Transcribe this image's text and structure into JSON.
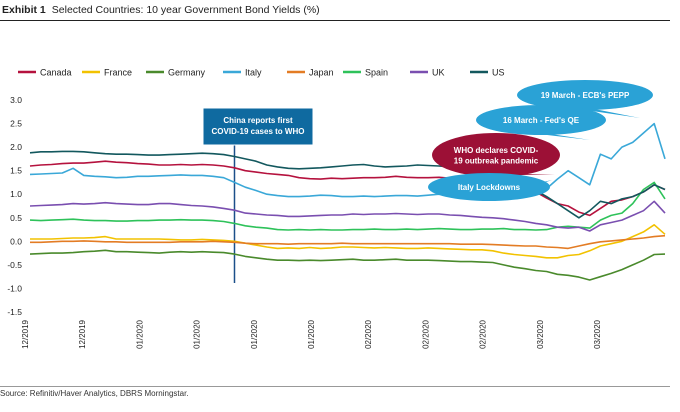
{
  "header": {
    "label": "Exhibit 1",
    "title": "Selected Countries: 10 year Government Bond Yields (%)"
  },
  "source": "Source: Refinitiv/Haver Analytics, DBRS Morningstar.",
  "chart_data": {
    "type": "line",
    "title": "Selected Countries: 10 year Government Bond Yields (%)",
    "xlabel": "",
    "ylabel": "",
    "ylim": [
      -1.5,
      3.0
    ],
    "yticks": [
      "3.0",
      "2.5",
      "2.0",
      "1.5",
      "1.0",
      "0.5",
      "0.0",
      "-0.5",
      "-1.0",
      "-1.5"
    ],
    "ytick_values": [
      3.0,
      2.5,
      2.0,
      1.5,
      1.0,
      0.5,
      0.0,
      -0.5,
      -1.0,
      -1.5
    ],
    "xticks": [
      "12/2019",
      "12/2019",
      "01/2020",
      "01/2020",
      "01/2020",
      "01/2020",
      "02/2020",
      "02/2020",
      "02/2020",
      "03/2020",
      "03/2020"
    ],
    "x_points": 60,
    "series": [
      {
        "name": "Canada",
        "color": "#b5123e",
        "values": [
          1.6,
          1.62,
          1.63,
          1.65,
          1.66,
          1.66,
          1.68,
          1.7,
          1.68,
          1.67,
          1.65,
          1.64,
          1.62,
          1.62,
          1.63,
          1.62,
          1.63,
          1.62,
          1.6,
          1.56,
          1.5,
          1.47,
          1.44,
          1.42,
          1.4,
          1.35,
          1.33,
          1.32,
          1.34,
          1.33,
          1.34,
          1.35,
          1.35,
          1.36,
          1.38,
          1.36,
          1.35,
          1.35,
          1.36,
          1.34,
          1.33,
          1.33,
          1.32,
          1.32,
          1.3,
          1.25,
          1.18,
          1.05,
          0.92,
          0.8,
          0.75,
          0.62,
          0.55,
          0.7,
          0.85,
          0.88,
          0.95,
          1.05,
          1.2,
          1.1
        ]
      },
      {
        "name": "France",
        "color": "#f2c200",
        "values": [
          0.05,
          0.05,
          0.05,
          0.06,
          0.07,
          0.07,
          0.08,
          0.1,
          0.05,
          0.05,
          0.05,
          0.05,
          0.05,
          0.04,
          0.03,
          0.03,
          0.04,
          0.03,
          0.02,
          0.0,
          -0.04,
          -0.08,
          -0.12,
          -0.15,
          -0.14,
          -0.15,
          -0.13,
          -0.15,
          -0.14,
          -0.12,
          -0.12,
          -0.13,
          -0.14,
          -0.13,
          -0.14,
          -0.15,
          -0.15,
          -0.14,
          -0.15,
          -0.16,
          -0.17,
          -0.18,
          -0.18,
          -0.2,
          -0.25,
          -0.28,
          -0.3,
          -0.32,
          -0.35,
          -0.35,
          -0.3,
          -0.28,
          -0.2,
          -0.1,
          -0.05,
          0.0,
          0.1,
          0.2,
          0.35,
          0.15
        ]
      },
      {
        "name": "Germany",
        "color": "#4a8a2c",
        "values": [
          -0.27,
          -0.26,
          -0.25,
          -0.25,
          -0.24,
          -0.22,
          -0.21,
          -0.19,
          -0.22,
          -0.22,
          -0.23,
          -0.24,
          -0.25,
          -0.23,
          -0.22,
          -0.23,
          -0.22,
          -0.23,
          -0.24,
          -0.27,
          -0.32,
          -0.35,
          -0.38,
          -0.4,
          -0.4,
          -0.41,
          -0.4,
          -0.41,
          -0.4,
          -0.39,
          -0.38,
          -0.4,
          -0.4,
          -0.39,
          -0.38,
          -0.4,
          -0.4,
          -0.4,
          -0.41,
          -0.42,
          -0.43,
          -0.43,
          -0.44,
          -0.45,
          -0.5,
          -0.55,
          -0.58,
          -0.62,
          -0.64,
          -0.7,
          -0.72,
          -0.76,
          -0.82,
          -0.75,
          -0.68,
          -0.6,
          -0.5,
          -0.4,
          -0.28,
          -0.27
        ]
      },
      {
        "name": "Italy",
        "color": "#3aa8d8",
        "values": [
          1.42,
          1.43,
          1.44,
          1.45,
          1.55,
          1.4,
          1.38,
          1.37,
          1.35,
          1.36,
          1.38,
          1.38,
          1.39,
          1.4,
          1.41,
          1.4,
          1.4,
          1.38,
          1.35,
          1.25,
          1.15,
          1.08,
          1.0,
          0.97,
          0.95,
          0.95,
          0.96,
          0.98,
          0.97,
          0.95,
          0.95,
          0.96,
          0.95,
          0.96,
          0.97,
          0.97,
          0.96,
          0.98,
          1.0,
          0.98,
          0.95,
          0.93,
          0.95,
          1.0,
          1.05,
          1.05,
          1.1,
          1.2,
          1.12,
          1.32,
          1.5,
          1.35,
          1.2,
          1.85,
          1.75,
          2.0,
          2.1,
          2.3,
          2.5,
          1.75
        ]
      },
      {
        "name": "Japan",
        "color": "#e37c24",
        "values": [
          -0.02,
          -0.02,
          -0.01,
          0.0,
          0.0,
          0.01,
          0.0,
          -0.01,
          -0.01,
          -0.02,
          -0.02,
          -0.02,
          -0.02,
          -0.02,
          -0.01,
          -0.01,
          -0.01,
          0.0,
          -0.01,
          -0.02,
          -0.04,
          -0.05,
          -0.05,
          -0.05,
          -0.06,
          -0.05,
          -0.05,
          -0.05,
          -0.05,
          -0.04,
          -0.05,
          -0.05,
          -0.05,
          -0.05,
          -0.05,
          -0.05,
          -0.05,
          -0.05,
          -0.05,
          -0.05,
          -0.06,
          -0.06,
          -0.06,
          -0.07,
          -0.08,
          -0.09,
          -0.1,
          -0.1,
          -0.12,
          -0.13,
          -0.15,
          -0.1,
          -0.05,
          -0.01,
          0.01,
          0.03,
          0.05,
          0.07,
          0.1,
          0.12
        ]
      },
      {
        "name": "Spain",
        "color": "#2ec25a",
        "values": [
          0.45,
          0.44,
          0.45,
          0.46,
          0.47,
          0.45,
          0.44,
          0.44,
          0.43,
          0.43,
          0.44,
          0.44,
          0.45,
          0.45,
          0.46,
          0.45,
          0.45,
          0.44,
          0.42,
          0.38,
          0.33,
          0.3,
          0.28,
          0.25,
          0.24,
          0.25,
          0.24,
          0.25,
          0.24,
          0.24,
          0.25,
          0.25,
          0.26,
          0.25,
          0.25,
          0.26,
          0.25,
          0.26,
          0.27,
          0.26,
          0.25,
          0.25,
          0.26,
          0.26,
          0.27,
          0.25,
          0.25,
          0.24,
          0.25,
          0.3,
          0.32,
          0.3,
          0.28,
          0.45,
          0.55,
          0.6,
          0.8,
          1.1,
          1.25,
          0.9
        ]
      },
      {
        "name": "UK",
        "color": "#7a4fb0",
        "values": [
          0.75,
          0.76,
          0.77,
          0.78,
          0.8,
          0.79,
          0.8,
          0.82,
          0.8,
          0.79,
          0.78,
          0.78,
          0.8,
          0.8,
          0.78,
          0.76,
          0.75,
          0.73,
          0.7,
          0.66,
          0.6,
          0.58,
          0.56,
          0.55,
          0.53,
          0.53,
          0.54,
          0.55,
          0.56,
          0.56,
          0.58,
          0.57,
          0.58,
          0.58,
          0.59,
          0.58,
          0.57,
          0.58,
          0.58,
          0.56,
          0.55,
          0.53,
          0.51,
          0.5,
          0.48,
          0.45,
          0.42,
          0.38,
          0.35,
          0.3,
          0.28,
          0.3,
          0.22,
          0.35,
          0.4,
          0.45,
          0.55,
          0.65,
          0.85,
          0.6
        ]
      },
      {
        "name": "US",
        "color": "#13585e",
        "values": [
          1.88,
          1.9,
          1.9,
          1.91,
          1.91,
          1.9,
          1.88,
          1.86,
          1.85,
          1.85,
          1.84,
          1.83,
          1.83,
          1.84,
          1.85,
          1.86,
          1.87,
          1.86,
          1.84,
          1.8,
          1.75,
          1.7,
          1.62,
          1.58,
          1.55,
          1.54,
          1.55,
          1.56,
          1.58,
          1.6,
          1.62,
          1.63,
          1.6,
          1.58,
          1.59,
          1.6,
          1.62,
          1.61,
          1.6,
          1.58,
          1.57,
          1.56,
          1.55,
          1.55,
          1.5,
          1.38,
          1.22,
          1.08,
          0.95,
          0.8,
          0.65,
          0.5,
          0.65,
          0.85,
          0.8,
          0.9,
          0.95,
          1.05,
          1.2,
          1.1
        ]
      }
    ],
    "annotations": [
      {
        "id": "china",
        "lines": [
          "China reports first",
          "COVID-19 cases to WHO"
        ],
        "color": "#0f6aa0"
      },
      {
        "id": "ecb",
        "lines": [
          "19 March - ECB's PEPP"
        ],
        "color": "#2aa2d6"
      },
      {
        "id": "fed",
        "lines": [
          "16 March - Fed's QE"
        ],
        "color": "#2aa2d6"
      },
      {
        "id": "who",
        "lines": [
          "WHO declares COVID-",
          "19 outbreak pandemic"
        ],
        "color": "#9c1036"
      },
      {
        "id": "italy",
        "lines": [
          "Italy Lockdowns"
        ],
        "color": "#2aa2d6"
      }
    ]
  }
}
